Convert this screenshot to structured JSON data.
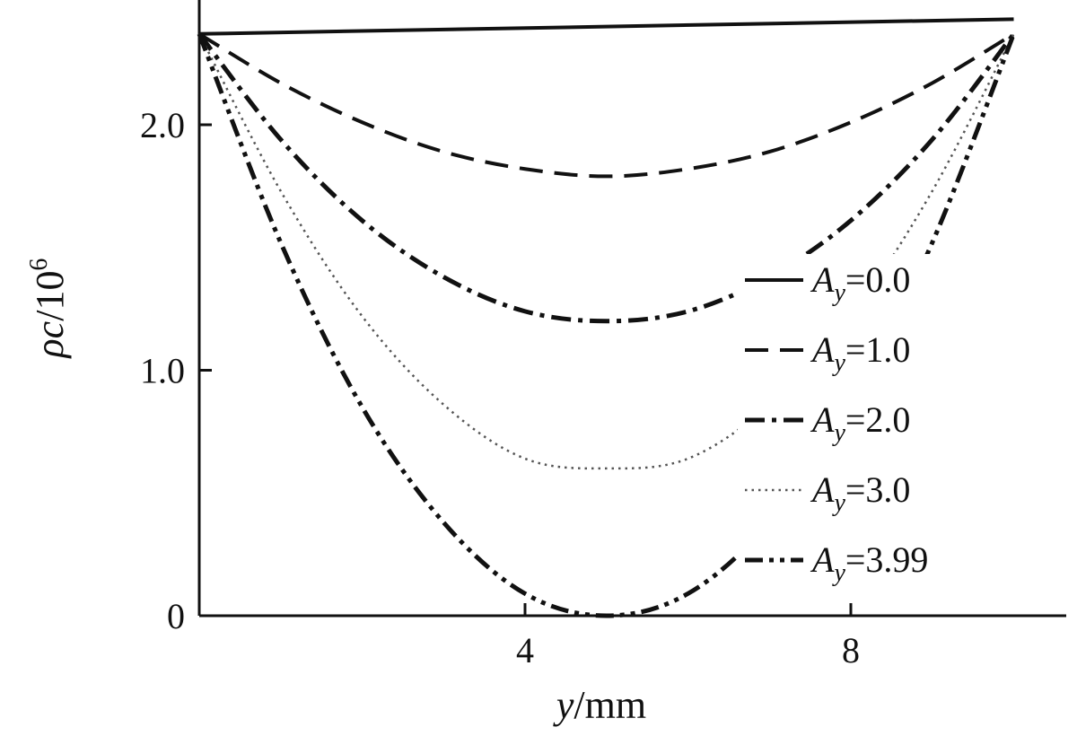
{
  "chart_data": {
    "type": "line",
    "title": "",
    "xlabel": {
      "var": "y",
      "unit": "mm"
    },
    "ylabel": {
      "var": "ρc",
      "base": "10",
      "exp": "6"
    },
    "xlim": [
      0,
      10.8
    ],
    "ylim": [
      0,
      2.5
    ],
    "x_ticks": [
      {
        "value": 4,
        "label": "4"
      },
      {
        "value": 8,
        "label": "8"
      }
    ],
    "y_ticks": [
      {
        "value": 0,
        "label": "0"
      },
      {
        "value": 1,
        "label": "1.0"
      },
      {
        "value": 2,
        "label": "2.0"
      }
    ],
    "grid": false,
    "legend_position": "right",
    "series": [
      {
        "name": "A_y=0.0",
        "var": "A",
        "sub": "y",
        "value": "0.0",
        "style": "solid",
        "points": [
          [
            0,
            2.37
          ],
          [
            10.0,
            2.43
          ]
        ]
      },
      {
        "name": "A_y=1.0",
        "var": "A",
        "sub": "y",
        "value": "1.0",
        "style": "dash",
        "points": [
          [
            0,
            2.37
          ],
          [
            1,
            2.17
          ],
          [
            2,
            2.01
          ],
          [
            3,
            1.89
          ],
          [
            4,
            1.82
          ],
          [
            5,
            1.79
          ],
          [
            6,
            1.82
          ],
          [
            7,
            1.89
          ],
          [
            8,
            2.01
          ],
          [
            9,
            2.17
          ],
          [
            10,
            2.37
          ]
        ]
      },
      {
        "name": "A_y=2.0",
        "var": "A",
        "sub": "y",
        "value": "2.0",
        "style": "dashdot",
        "points": [
          [
            0,
            2.37
          ],
          [
            1,
            1.94
          ],
          [
            2,
            1.61
          ],
          [
            3,
            1.38
          ],
          [
            4,
            1.24
          ],
          [
            5,
            1.2
          ],
          [
            6,
            1.24
          ],
          [
            7,
            1.38
          ],
          [
            8,
            1.61
          ],
          [
            9,
            1.94
          ],
          [
            10,
            2.37
          ]
        ]
      },
      {
        "name": "A_y=3.0",
        "var": "A",
        "sub": "y",
        "value": "3.0",
        "style": "dot",
        "points": [
          [
            0,
            2.37
          ],
          [
            1,
            1.73
          ],
          [
            2,
            1.22
          ],
          [
            3,
            0.86
          ],
          [
            4,
            0.64
          ],
          [
            5,
            0.6
          ],
          [
            6,
            0.64
          ],
          [
            7,
            0.86
          ],
          [
            8,
            1.22
          ],
          [
            9,
            1.73
          ],
          [
            10,
            2.37
          ]
        ]
      },
      {
        "name": "A_y=3.99",
        "var": "A",
        "sub": "y",
        "value": "3.99",
        "style": "dashdotdot",
        "points": [
          [
            0,
            2.37
          ],
          [
            1,
            1.52
          ],
          [
            2,
            0.85
          ],
          [
            3,
            0.38
          ],
          [
            4,
            0.09
          ],
          [
            5,
            0.0
          ],
          [
            6,
            0.09
          ],
          [
            7,
            0.38
          ],
          [
            8,
            0.85
          ],
          [
            9,
            1.52
          ],
          [
            10,
            2.37
          ]
        ]
      }
    ]
  }
}
